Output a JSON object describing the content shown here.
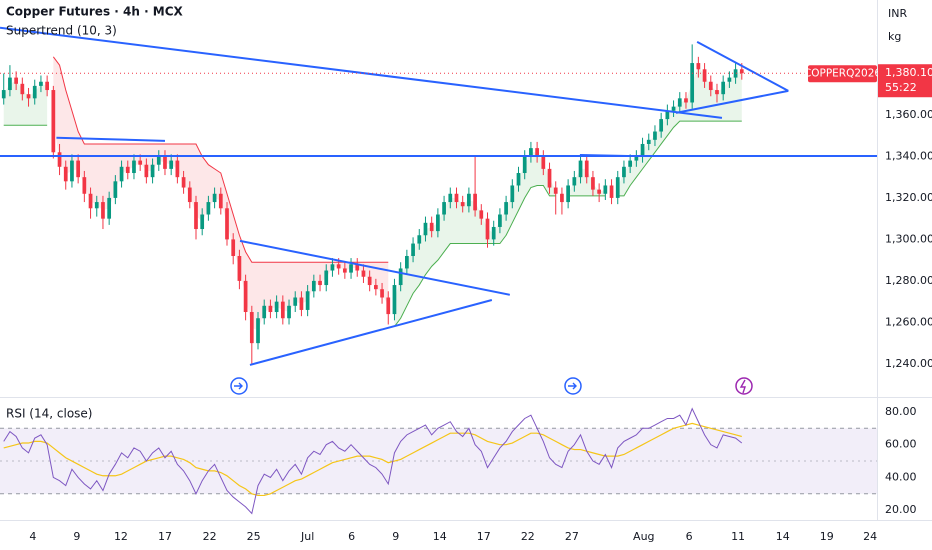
{
  "header": {
    "currency": "INR",
    "unit": "kg"
  },
  "chart_data": [
    {
      "type": "candlestick",
      "title": "Copper Futures · 4h · MCX",
      "indicator": "Supertrend (10, 3)",
      "symbol": "COPPERQ2026",
      "last_price": {
        "value": 1380.1,
        "label": "1,380.10"
      },
      "countdown": "55:22",
      "up_color": "#089981",
      "down_color": "#f23645",
      "xlim": [
        -0.6,
        140.8
      ],
      "xticks": [
        {
          "value": 4.7,
          "label": "4"
        },
        {
          "value": 11.8,
          "label": "9"
        },
        {
          "value": 18.9,
          "label": "12"
        },
        {
          "value": 26,
          "label": "17"
        },
        {
          "value": 33.2,
          "label": "22"
        },
        {
          "value": 40.3,
          "label": "25"
        },
        {
          "value": 49,
          "label": "Jul"
        },
        {
          "value": 56.1,
          "label": "6"
        },
        {
          "value": 63.2,
          "label": "9"
        },
        {
          "value": 70.3,
          "label": "14"
        },
        {
          "value": 77.4,
          "label": "17"
        },
        {
          "value": 84.5,
          "label": "22"
        },
        {
          "value": 91.6,
          "label": "27"
        },
        {
          "value": 103.2,
          "label": "Aug"
        },
        {
          "value": 110.5,
          "label": "6"
        },
        {
          "value": 118.4,
          "label": "11"
        },
        {
          "value": 125.6,
          "label": "14"
        },
        {
          "value": 132.7,
          "label": "19"
        },
        {
          "value": 139.7,
          "label": "24"
        }
      ],
      "ylim": [
        1225,
        1415.4
      ],
      "yticks": [
        {
          "value": 1240,
          "label": "1,240.00"
        },
        {
          "value": 1260,
          "label": "1,260.00"
        },
        {
          "value": 1280,
          "label": "1,280.00"
        },
        {
          "value": 1300,
          "label": "1,300.00"
        },
        {
          "value": 1320,
          "label": "1,320.00"
        },
        {
          "value": 1340,
          "label": "1,340.00"
        },
        {
          "value": 1360,
          "label": "1,360.00"
        }
      ],
      "open": [
        1368,
        1372,
        1378,
        1375,
        1370,
        1368,
        1374,
        1376,
        1372,
        1342,
        1335,
        1328,
        1338,
        1330,
        1322,
        1315,
        1318,
        1310,
        1320,
        1328,
        1335,
        1332,
        1338,
        1336,
        1330,
        1336,
        1340,
        1334,
        1338,
        1330,
        1325,
        1318,
        1305,
        1312,
        1318,
        1322,
        1315,
        1300,
        1292,
        1280,
        1265,
        1250,
        1262,
        1268,
        1265,
        1270,
        1262,
        1268,
        1272,
        1266,
        1275,
        1280,
        1278,
        1285,
        1288,
        1286,
        1284,
        1288,
        1285,
        1282,
        1278,
        1276,
        1272,
        1264,
        1278,
        1286,
        1292,
        1298,
        1302,
        1308,
        1304,
        1312,
        1318,
        1322,
        1318,
        1316,
        1322,
        1314,
        1310,
        1300,
        1306,
        1312,
        1318,
        1326,
        1332,
        1340,
        1344,
        1340,
        1334,
        1325,
        1322,
        1318,
        1326,
        1330,
        1338,
        1330,
        1324,
        1322,
        1326,
        1320,
        1330,
        1335,
        1338,
        1340,
        1346,
        1348,
        1352,
        1358,
        1362,
        1364,
        1368,
        1366,
        1385,
        1382,
        1376,
        1372,
        1370,
        1376,
        1378,
        1382
      ],
      "high": [
        1380,
        1384,
        1381,
        1378,
        1373,
        1377,
        1379,
        1379,
        1374,
        1346,
        1338,
        1341,
        1341,
        1333,
        1325,
        1321,
        1321,
        1323,
        1331,
        1338,
        1338,
        1341,
        1341,
        1339,
        1339,
        1343,
        1343,
        1341,
        1341,
        1333,
        1328,
        1321,
        1315,
        1321,
        1325,
        1325,
        1318,
        1303,
        1295,
        1283,
        1268,
        1265,
        1271,
        1271,
        1273,
        1273,
        1271,
        1275,
        1275,
        1278,
        1283,
        1283,
        1288,
        1291,
        1291,
        1289,
        1291,
        1291,
        1288,
        1285,
        1281,
        1279,
        1275,
        1281,
        1289,
        1295,
        1301,
        1305,
        1311,
        1311,
        1315,
        1321,
        1325,
        1325,
        1321,
        1325,
        1340,
        1317,
        1313,
        1309,
        1315,
        1321,
        1329,
        1335,
        1343,
        1347,
        1347,
        1343,
        1337,
        1328,
        1325,
        1329,
        1333,
        1341,
        1341,
        1333,
        1327,
        1329,
        1329,
        1333,
        1338,
        1341,
        1343,
        1349,
        1351,
        1355,
        1361,
        1365,
        1367,
        1371,
        1371,
        1394,
        1388,
        1385,
        1379,
        1375,
        1379,
        1381,
        1385,
        1385
      ],
      "low": [
        1365,
        1369,
        1372,
        1367,
        1364,
        1365,
        1371,
        1369,
        1339,
        1331,
        1324,
        1325,
        1327,
        1318,
        1310,
        1311,
        1305,
        1307,
        1317,
        1325,
        1329,
        1329,
        1333,
        1327,
        1327,
        1333,
        1331,
        1331,
        1327,
        1322,
        1315,
        1300,
        1302,
        1309,
        1315,
        1312,
        1297,
        1288,
        1276,
        1261,
        1240,
        1247,
        1259,
        1262,
        1262,
        1259,
        1259,
        1265,
        1263,
        1263,
        1272,
        1275,
        1275,
        1282,
        1283,
        1281,
        1281,
        1282,
        1279,
        1275,
        1273,
        1269,
        1259,
        1261,
        1275,
        1283,
        1289,
        1295,
        1299,
        1301,
        1301,
        1309,
        1315,
        1315,
        1313,
        1313,
        1311,
        1307,
        1296,
        1297,
        1303,
        1309,
        1315,
        1323,
        1329,
        1337,
        1337,
        1331,
        1322,
        1312,
        1312,
        1315,
        1323,
        1327,
        1327,
        1321,
        1318,
        1319,
        1317,
        1317,
        1327,
        1332,
        1335,
        1337,
        1343,
        1345,
        1349,
        1355,
        1359,
        1361,
        1363,
        1363,
        1378,
        1373,
        1369,
        1366,
        1367,
        1373,
        1375,
        1377
      ],
      "close": [
        1372,
        1378,
        1375,
        1370,
        1368,
        1374,
        1376,
        1372,
        1342,
        1335,
        1328,
        1338,
        1330,
        1322,
        1315,
        1318,
        1310,
        1320,
        1328,
        1335,
        1332,
        1338,
        1336,
        1330,
        1336,
        1340,
        1334,
        1338,
        1330,
        1325,
        1318,
        1305,
        1312,
        1318,
        1322,
        1315,
        1300,
        1292,
        1280,
        1265,
        1250,
        1262,
        1268,
        1265,
        1270,
        1262,
        1268,
        1272,
        1266,
        1275,
        1280,
        1278,
        1285,
        1288,
        1286,
        1284,
        1288,
        1285,
        1282,
        1278,
        1276,
        1272,
        1264,
        1278,
        1286,
        1292,
        1298,
        1302,
        1308,
        1304,
        1312,
        1318,
        1322,
        1318,
        1316,
        1322,
        1314,
        1310,
        1300,
        1306,
        1312,
        1318,
        1326,
        1332,
        1340,
        1344,
        1340,
        1334,
        1325,
        1322,
        1318,
        1326,
        1330,
        1338,
        1330,
        1324,
        1322,
        1326,
        1320,
        1330,
        1335,
        1338,
        1340,
        1346,
        1348,
        1352,
        1358,
        1362,
        1364,
        1368,
        1366,
        1385,
        1382,
        1376,
        1372,
        1370,
        1376,
        1378,
        1382,
        1380.1
      ],
      "supertrend": {
        "up_color": "#4caf50",
        "down_color": "#f23645",
        "values": [
          1355,
          1355,
          1355,
          1355,
          1355,
          1355,
          1355,
          1355,
          1388,
          1384,
          1372,
          1362,
          1352,
          1346,
          1346,
          1346,
          1346,
          1346,
          1346,
          1346,
          1346,
          1346,
          1346,
          1346,
          1346,
          1346,
          1346,
          1346,
          1346,
          1346,
          1346,
          1346,
          1340,
          1336,
          1334,
          1332,
          1322,
          1312,
          1302,
          1294,
          1289,
          1289,
          1289,
          1289,
          1289,
          1289,
          1289,
          1289,
          1289,
          1289,
          1289,
          1289,
          1289,
          1289,
          1289,
          1289,
          1289,
          1289,
          1289,
          1289,
          1289,
          1289,
          1289,
          1258,
          1262,
          1268,
          1274,
          1278,
          1283,
          1287,
          1290,
          1294,
          1298,
          1298,
          1298,
          1298,
          1298,
          1298,
          1298,
          1298,
          1298,
          1302,
          1308,
          1314,
          1320,
          1325,
          1326,
          1326,
          1321,
          1321,
          1321,
          1321,
          1321,
          1321,
          1321,
          1321,
          1321,
          1321,
          1321,
          1321,
          1321,
          1326,
          1330,
          1334,
          1338,
          1342,
          1346,
          1350,
          1354,
          1357,
          1357,
          1357,
          1357,
          1357,
          1357,
          1357,
          1357,
          1357,
          1357,
          1357,
          1357
        ]
      },
      "trendline_color": "#2962ff",
      "trendlines": [
        {
          "x": [
            -0.6,
            115.8
          ],
          "y": [
            1402,
            1358.6
          ]
        },
        {
          "x": [
            -0.6,
            140.8
          ],
          "y": [
            1340.2,
            1340.2
          ]
        },
        {
          "x": [
            8.5,
            26
          ],
          "y": [
            1349,
            1347.5
          ]
        },
        {
          "x": [
            38.1,
            81.6
          ],
          "y": [
            1299.3,
            1273.3
          ]
        },
        {
          "x": [
            39.7,
            78.7
          ],
          "y": [
            1239.5,
            1270.8
          ]
        },
        {
          "x": [
            92.9,
            100.6
          ],
          "y": [
            1340.7,
            1340.2
          ]
        },
        {
          "x": [
            111.8,
            126.5
          ],
          "y": [
            1395.2,
            1371.6
          ]
        },
        {
          "x": [
            108.4,
            126.5
          ],
          "y": [
            1361,
            1371.6
          ]
        }
      ]
    },
    {
      "type": "line",
      "title": "RSI (14, close)",
      "xlim": [
        -0.6,
        140.8
      ],
      "ylim": [
        14,
        88.5
      ],
      "yticks": [
        {
          "value": 80,
          "label": "80.00"
        },
        {
          "value": 60,
          "label": "60.00"
        },
        {
          "value": 40,
          "label": "40.00"
        },
        {
          "value": 20,
          "label": "20.00"
        }
      ],
      "bands": [
        30,
        70
      ],
      "midline": 50,
      "band_color": "#7e57c2",
      "rsi": {
        "color": "#7e57c2",
        "values": [
          62,
          68,
          65,
          58,
          55,
          64,
          66,
          60,
          40,
          38,
          35,
          45,
          40,
          36,
          33,
          38,
          32,
          42,
          48,
          55,
          52,
          58,
          56,
          50,
          55,
          58,
          52,
          56,
          48,
          44,
          38,
          30,
          38,
          44,
          48,
          40,
          32,
          28,
          25,
          22,
          18,
          35,
          42,
          40,
          45,
          38,
          44,
          48,
          42,
          52,
          56,
          54,
          60,
          62,
          58,
          56,
          60,
          56,
          52,
          48,
          46,
          42,
          36,
          55,
          62,
          66,
          68,
          70,
          72,
          66,
          70,
          72,
          74,
          68,
          65,
          70,
          60,
          56,
          46,
          52,
          58,
          62,
          68,
          72,
          76,
          78,
          70,
          62,
          52,
          48,
          46,
          56,
          60,
          66,
          56,
          50,
          48,
          54,
          46,
          58,
          62,
          64,
          66,
          70,
          70,
          72,
          74,
          76,
          76,
          78,
          72,
          82,
          74,
          66,
          60,
          58,
          66,
          65,
          64,
          61
        ]
      },
      "rsi_ma": {
        "color": "#f5c518",
        "values": [
          58,
          59,
          60,
          61,
          61,
          62,
          62,
          61,
          58,
          55,
          52,
          50,
          48,
          46,
          44,
          42,
          41,
          41,
          41,
          42,
          44,
          46,
          48,
          50,
          51,
          52,
          53,
          53,
          52,
          51,
          49,
          46,
          45,
          44,
          44,
          43,
          41,
          38,
          35,
          33,
          30,
          29,
          29,
          30,
          32,
          34,
          36,
          38,
          39,
          41,
          43,
          45,
          47,
          49,
          50,
          51,
          52,
          53,
          53,
          53,
          52,
          51,
          49,
          50,
          51,
          53,
          55,
          57,
          59,
          61,
          63,
          65,
          67,
          67,
          67,
          67,
          66,
          64,
          62,
          61,
          60,
          60,
          61,
          63,
          65,
          67,
          67,
          66,
          64,
          62,
          60,
          58,
          57,
          57,
          56,
          55,
          54,
          53,
          53,
          53,
          54,
          56,
          58,
          60,
          62,
          64,
          66,
          68,
          70,
          71,
          72,
          73,
          72,
          71,
          70,
          69,
          68,
          67,
          66,
          65
        ]
      }
    }
  ]
}
